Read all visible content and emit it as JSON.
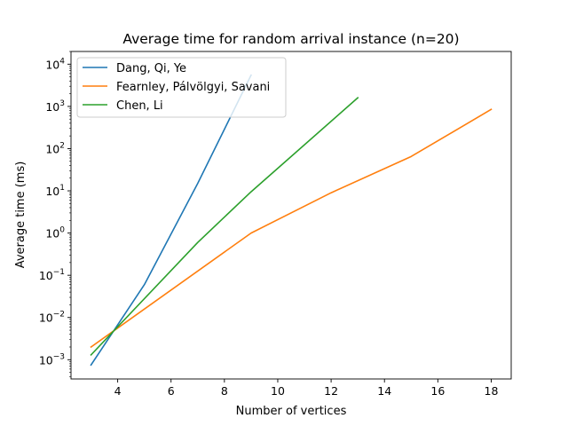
{
  "chart_data": {
    "type": "line",
    "title": "Average time for random arrival instance (n=20)",
    "xlabel": "Number of vertices",
    "ylabel": "Average time (ms)",
    "xlim": [
      2.25,
      18.75
    ],
    "ylim": [
      0.00035,
      20000
    ],
    "y_scale": "log",
    "grid": false,
    "legend_position": "top-left",
    "x_ticks": [
      4,
      6,
      8,
      10,
      12,
      14,
      16,
      18
    ],
    "y_ticks": [
      {
        "value": 0.001,
        "base": "10",
        "exp": "−3"
      },
      {
        "value": 0.01,
        "base": "10",
        "exp": "−2"
      },
      {
        "value": 0.1,
        "base": "10",
        "exp": "−1"
      },
      {
        "value": 1,
        "base": "10",
        "exp": "0"
      },
      {
        "value": 10,
        "base": "10",
        "exp": "1"
      },
      {
        "value": 100,
        "base": "10",
        "exp": "2"
      },
      {
        "value": 1000,
        "base": "10",
        "exp": "3"
      },
      {
        "value": 10000,
        "base": "10",
        "exp": "4"
      }
    ],
    "series": [
      {
        "name": "Dang, Qi, Ye",
        "color": "#1f77b4",
        "x": [
          3,
          5,
          7,
          9
        ],
        "y": [
          0.00075,
          0.06,
          15,
          5500
        ]
      },
      {
        "name": "Fearnley, Pálvölgyi, Savani",
        "color": "#ff7f0e",
        "x": [
          3,
          9,
          12,
          15,
          18
        ],
        "y": [
          0.002,
          1.0,
          9,
          65,
          850
        ]
      },
      {
        "name": "Chen, Li",
        "color": "#2ca02c",
        "x": [
          3,
          7,
          9,
          13
        ],
        "y": [
          0.0013,
          0.6,
          9.5,
          1600
        ]
      }
    ]
  }
}
